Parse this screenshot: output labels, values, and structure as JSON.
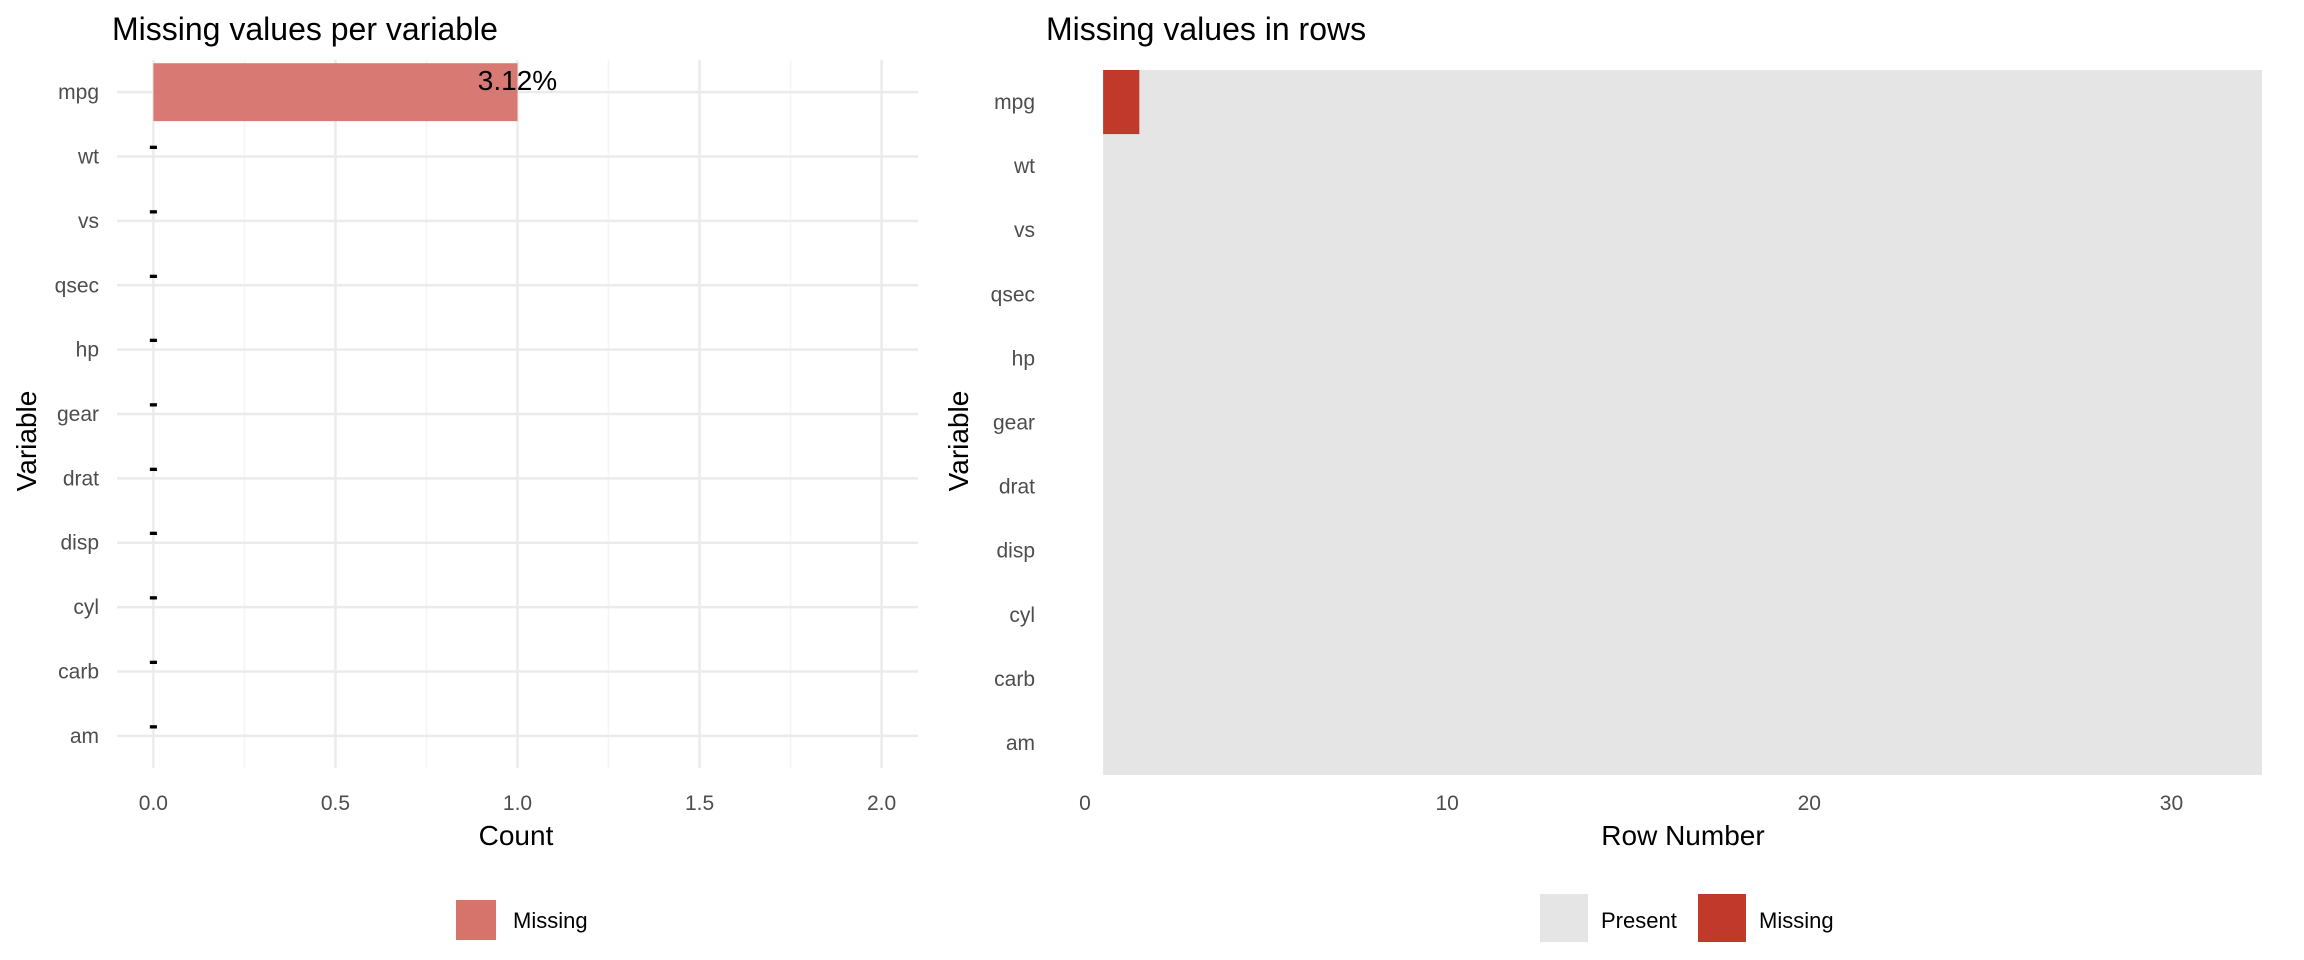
{
  "chart_data": [
    {
      "type": "bar",
      "orientation": "horizontal",
      "title": "Missing values per variable",
      "xlabel": "Count",
      "ylabel": "Variable",
      "categories": [
        "mpg",
        "wt",
        "vs",
        "qsec",
        "hp",
        "gear",
        "drat",
        "disp",
        "cyl",
        "carb",
        "am"
      ],
      "values": [
        1,
        0,
        0,
        0,
        0,
        0,
        0,
        0,
        0,
        0,
        0
      ],
      "data_labels": [
        "3.12%",
        "-",
        "-",
        "-",
        "-",
        "-",
        "-",
        "-",
        "-",
        "-",
        "-"
      ],
      "xlim": [
        -0.1,
        2.1
      ],
      "xticks": [
        0.0,
        0.5,
        1.0,
        1.5,
        2.0
      ],
      "xtick_labels": [
        "0.0",
        "0.5",
        "1.0",
        "1.5",
        "2.0"
      ],
      "grid": true,
      "legend_position": "bottom",
      "series": [
        {
          "name": "Missing",
          "color": "#d6736b"
        }
      ]
    },
    {
      "type": "heatmap",
      "title": "Missing values in rows",
      "xlabel": "Row Number",
      "ylabel": "Variable",
      "categories": [
        "mpg",
        "wt",
        "vs",
        "qsec",
        "hp",
        "gear",
        "drat",
        "disp",
        "cyl",
        "carb",
        "am"
      ],
      "rows": [
        1,
        32
      ],
      "xlim": [
        0,
        32.5
      ],
      "xticks": [
        0,
        10,
        20,
        30
      ],
      "xtick_labels": [
        "0",
        "10",
        "20",
        "30"
      ],
      "missing": [
        {
          "variable": "mpg",
          "row": 1
        }
      ],
      "legend_position": "bottom",
      "legend": [
        {
          "name": "Present",
          "color": "#e5e5e5"
        },
        {
          "name": "Missing",
          "color": "#c0392b"
        }
      ]
    }
  ]
}
